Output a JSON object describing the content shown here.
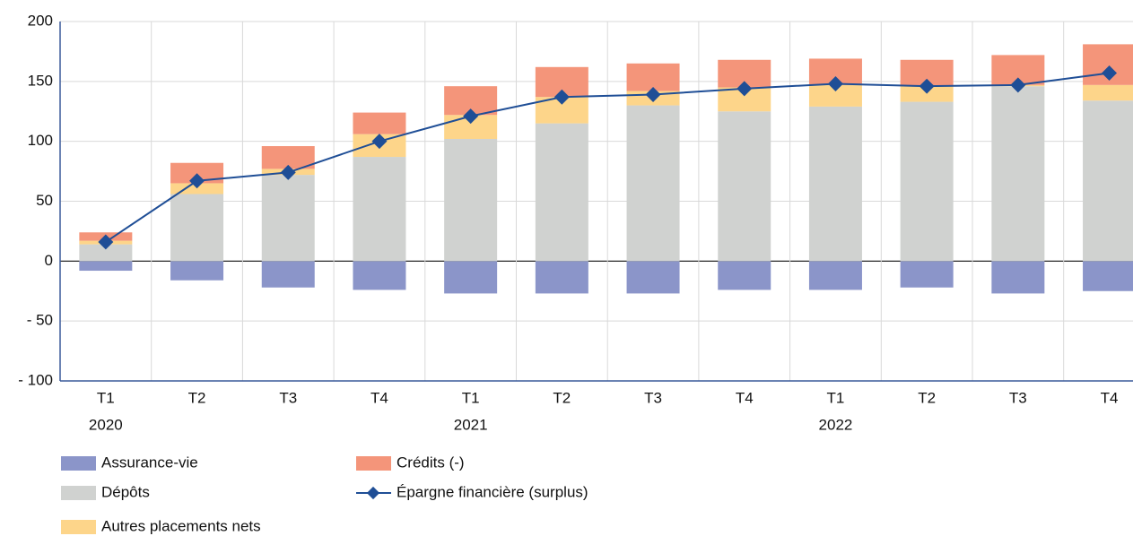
{
  "chart_data": {
    "type": "bar",
    "stacked": true,
    "grid": true,
    "categories": [
      [
        "T1",
        "2020"
      ],
      [
        "T2"
      ],
      [
        "T3"
      ],
      [
        "T4"
      ],
      [
        "T1",
        "2021"
      ],
      [
        "T2"
      ],
      [
        "T3"
      ],
      [
        "T4"
      ],
      [
        "T1",
        "2022"
      ],
      [
        "T2"
      ],
      [
        "T3"
      ],
      [
        "T4"
      ]
    ],
    "ylim": [
      -100,
      200
    ],
    "yticks": [
      {
        "value": -100,
        "label": "- 100"
      },
      {
        "value": -50,
        "label": "- 50"
      },
      0,
      50,
      100,
      150,
      200
    ],
    "series": [
      {
        "name": "Assurance-vie",
        "color": "#8b95c9",
        "kind": "bar",
        "values": [
          -8,
          -16,
          -22,
          -24,
          -27,
          -27,
          -27,
          -24,
          -24,
          -22,
          -27,
          -25
        ]
      },
      {
        "name": "Dépôts",
        "color": "#d0d2d0",
        "kind": "bar",
        "values": [
          14,
          56,
          72,
          87,
          102,
          115,
          130,
          125,
          129,
          133,
          146,
          134
        ]
      },
      {
        "name": "Autres placements nets",
        "color": "#fdd58a",
        "kind": "bar",
        "values": [
          3,
          9,
          5,
          19,
          20,
          22,
          12,
          20,
          18,
          13,
          1,
          13
        ]
      },
      {
        "name": "Crédits (-)",
        "color": "#f4957a",
        "kind": "bar",
        "values": [
          7,
          17,
          19,
          18,
          24,
          25,
          23,
          23,
          22,
          22,
          25,
          34
        ]
      },
      {
        "name": "Épargne financière (surplus)",
        "color": "#1f4e96",
        "kind": "line",
        "values": [
          16,
          67,
          74,
          100,
          121,
          137,
          139,
          144,
          148,
          146,
          147,
          157
        ]
      }
    ]
  }
}
